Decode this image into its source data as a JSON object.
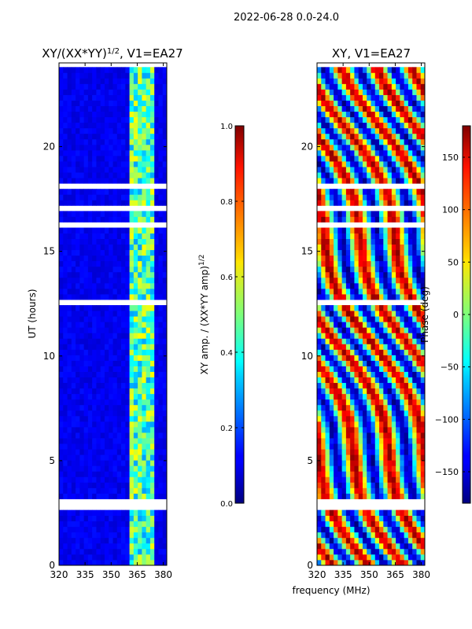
{
  "suptitle": "2022-06-28 0.0-24.0",
  "chart_data": [
    {
      "type": "heatmap",
      "title": "XY/(XX*YY)^{1/2}, V1=EA27",
      "title_main": "XY/(XX*YY)",
      "title_sup": "1/2",
      "title_tail": ", V1=EA27",
      "xlabel": "",
      "ylabel": "UT (hours)",
      "x_range": [
        320,
        382
      ],
      "y_range": [
        0,
        24
      ],
      "x_ticks": [
        320,
        335,
        350,
        365,
        380
      ],
      "x_tick_labels": [
        "320",
        "335",
        "350",
        "365",
        "380"
      ],
      "y_ticks": [
        0,
        5,
        10,
        15,
        20
      ],
      "y_tick_labels": [
        "0",
        "5",
        "10",
        "15",
        "20"
      ],
      "data_top_hour": 23.8,
      "colorbar": {
        "label": "XY amp. / (XX*YY amp)^{1/2}",
        "label_main": "XY amp. / (XX*YY amp)",
        "label_sup": "1/2",
        "range": [
          0.0,
          1.0
        ],
        "ticks": [
          0.0,
          0.2,
          0.4,
          0.6,
          0.8,
          1.0
        ],
        "tick_labels": [
          "0.0",
          "0.2",
          "0.4",
          "0.6",
          "0.8",
          "1.0"
        ]
      }
    },
    {
      "type": "heatmap",
      "title": "XY, V1=EA27",
      "xlabel": "frequency (MHz)",
      "ylabel": "",
      "x_range": [
        320,
        382
      ],
      "y_range": [
        0,
        24
      ],
      "x_ticks": [
        320,
        335,
        350,
        365,
        380
      ],
      "x_tick_labels": [
        "320",
        "335",
        "350",
        "365",
        "380"
      ],
      "y_ticks": [
        0,
        5,
        10,
        15,
        20
      ],
      "y_tick_labels": [
        "0",
        "5",
        "10",
        "15",
        "20"
      ],
      "data_top_hour": 23.8,
      "colorbar": {
        "label": "Phase (deg)",
        "range": [
          -180,
          180
        ],
        "ticks": [
          -150,
          -100,
          -50,
          0,
          50,
          100,
          150
        ],
        "tick_labels": [
          "−150",
          "−100",
          "−50",
          "0",
          "50",
          "100",
          "150"
        ]
      }
    }
  ]
}
